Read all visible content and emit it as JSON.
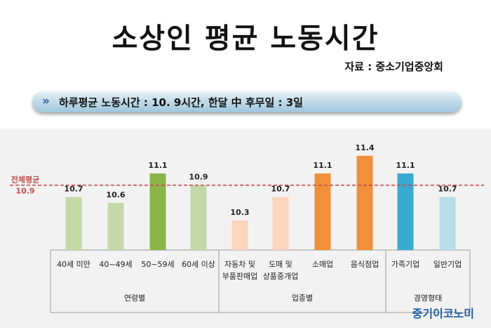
{
  "header": {
    "title": "소상인 평균 노동시간",
    "source": "자료 : 중소기업중앙회"
  },
  "banner": {
    "arrow_icon": "»",
    "text": "하루평균 노동시간 : 10. 9시간, 한달 中 후무일 : 3일"
  },
  "footer": {
    "brand": "중기이코노미"
  },
  "chart_data": {
    "type": "bar",
    "average": {
      "value": 10.9,
      "label_line1": "전체평균",
      "label_line2": "10.9",
      "color": "#c0504d"
    },
    "ylim": [
      9.8,
      11.6
    ],
    "categories": [
      "40세 미만",
      "40~49세",
      "50~59세",
      "60세 이상",
      "자동차 및\n부품판매업",
      "도매 및\n상품중개업",
      "소매업",
      "음식점업",
      "가족기업",
      "일반기업"
    ],
    "values": [
      10.7,
      10.6,
      11.1,
      10.9,
      10.3,
      10.7,
      11.1,
      11.4,
      11.1,
      10.7
    ],
    "colors": [
      "#c4d9a7",
      "#c4d9a7",
      "#8bb54a",
      "#c4d9a7",
      "#fbd5be",
      "#fbd5be",
      "#f28f3a",
      "#f28f3a",
      "#3aaad0",
      "#b9dde9"
    ],
    "groups": [
      {
        "name": "연령별",
        "count": 4
      },
      {
        "name": "업종별",
        "count": 4
      },
      {
        "name": "경영형태",
        "count": 2
      }
    ]
  }
}
